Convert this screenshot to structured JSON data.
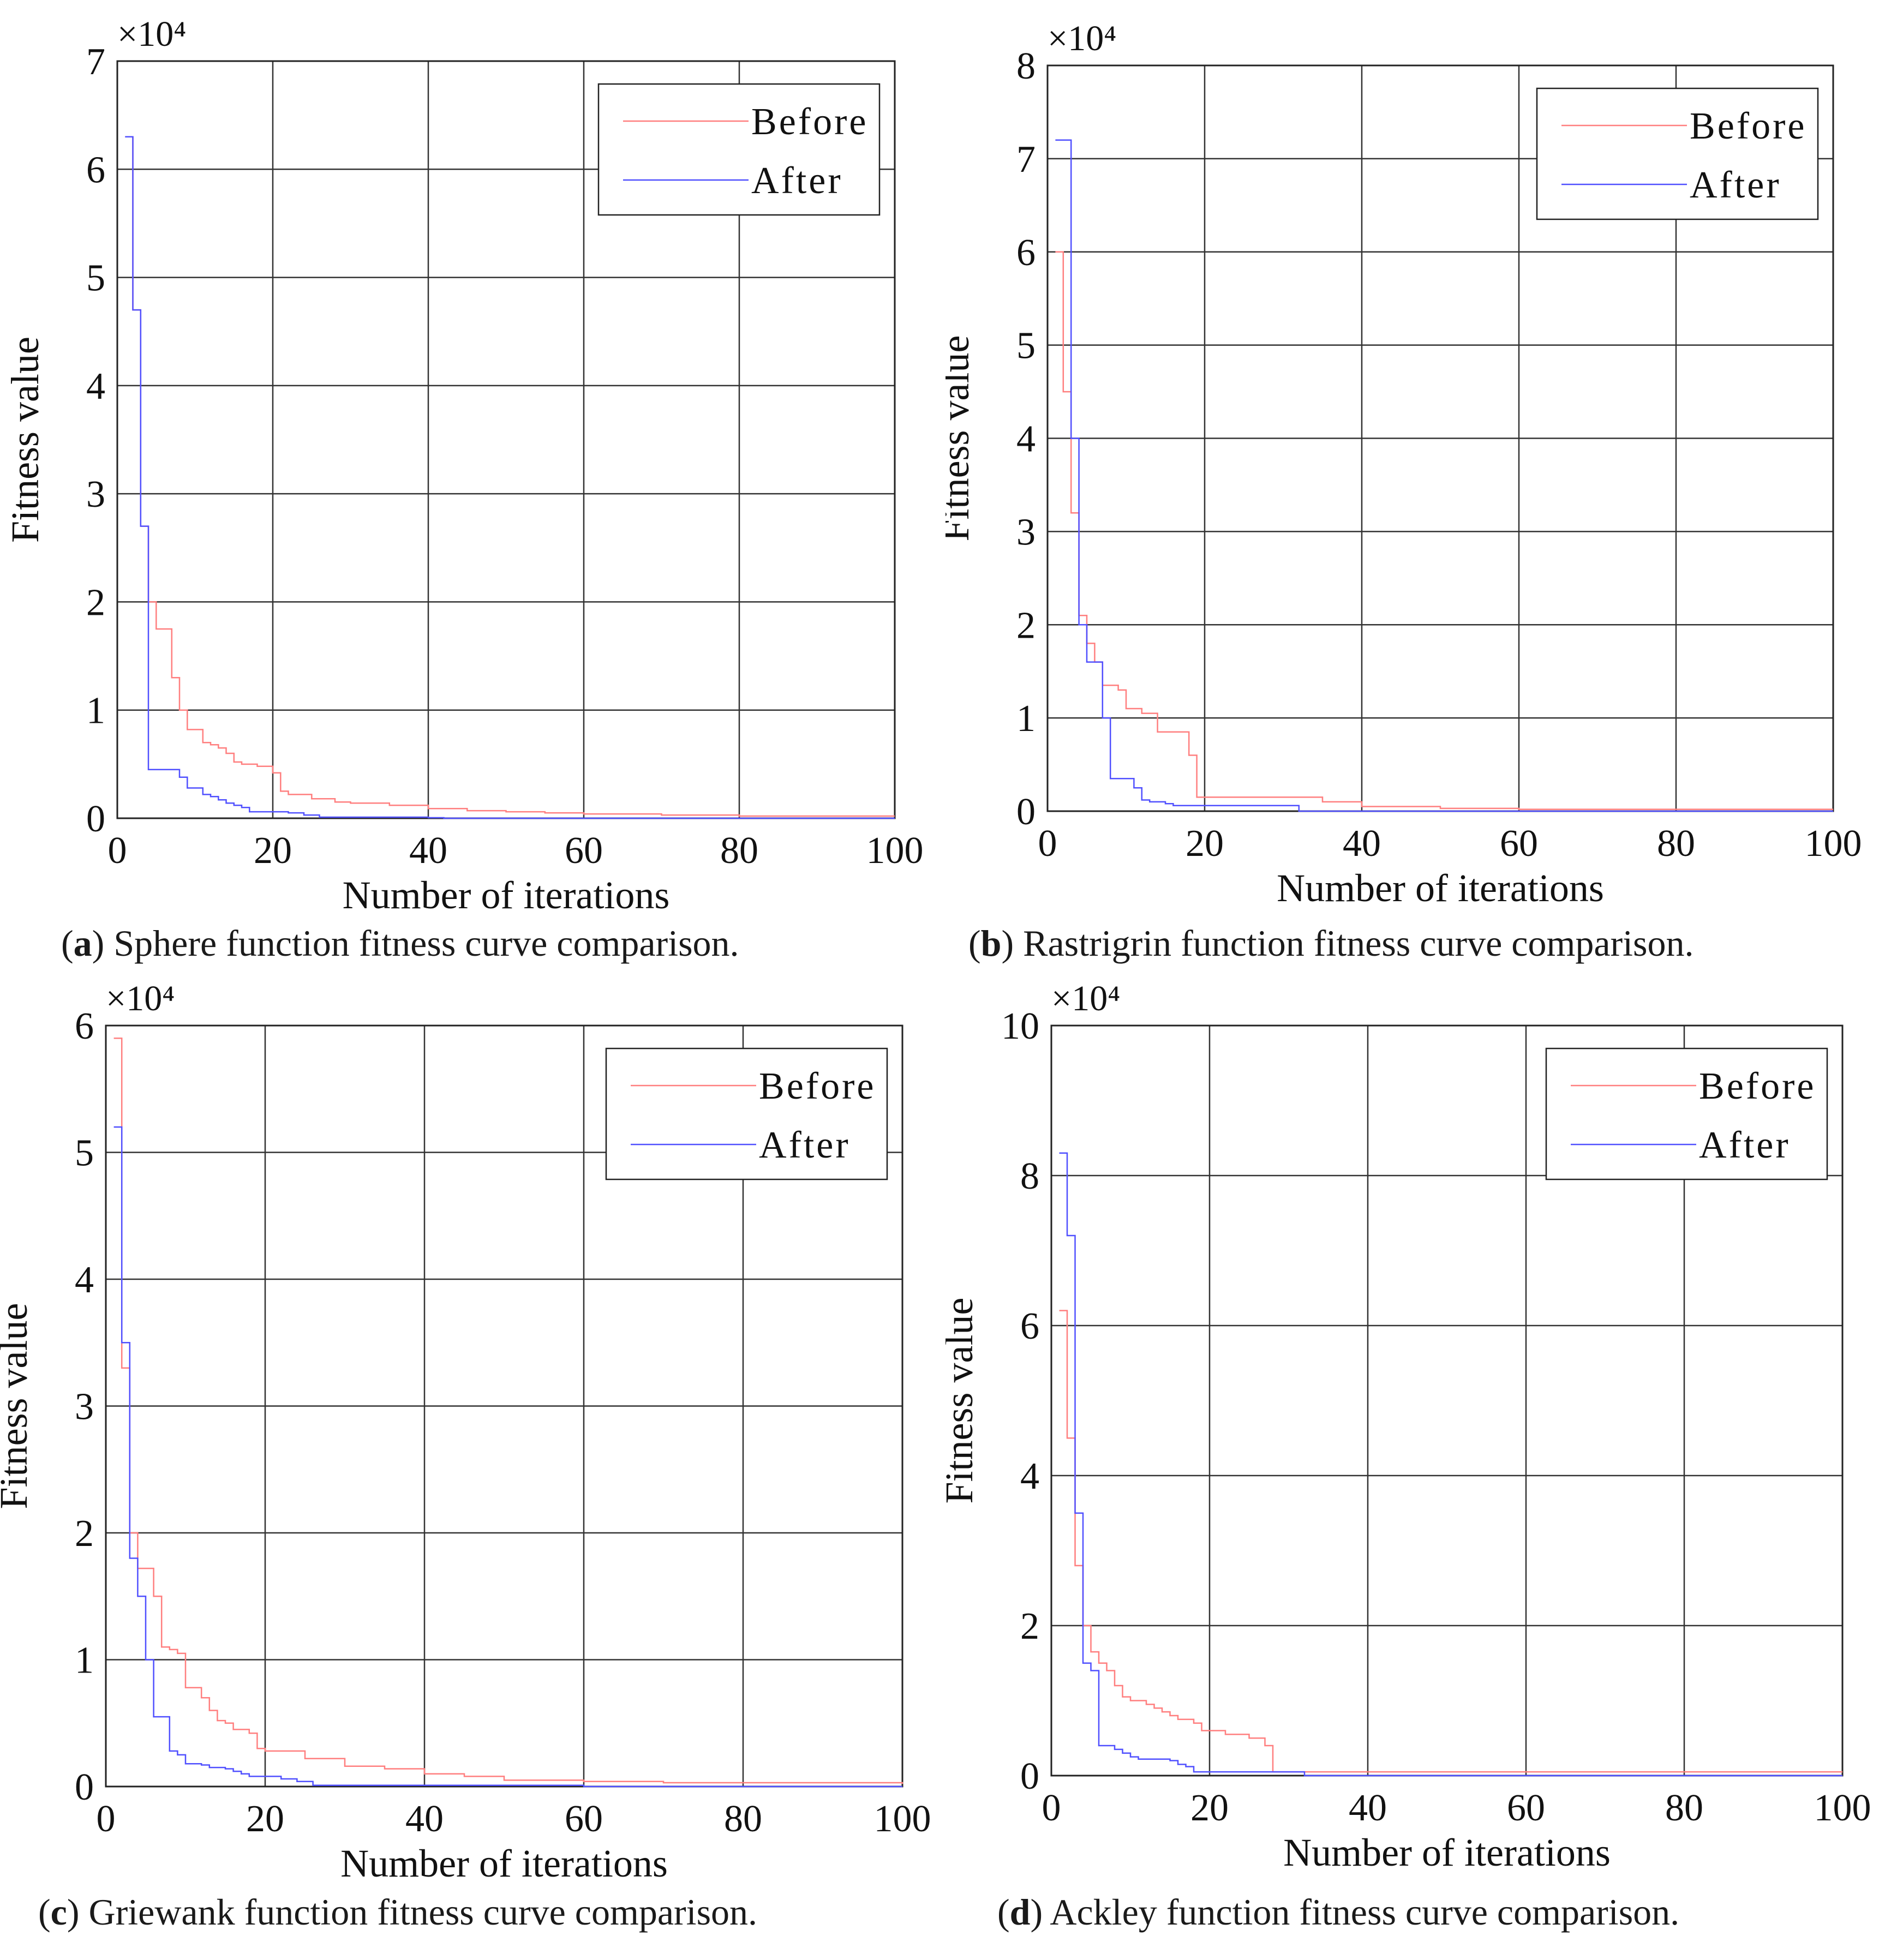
{
  "figure": {
    "panels": [
      {
        "label": "a",
        "caption": "Sphere function fitness curve comparison."
      },
      {
        "label": "b",
        "caption": "Rastrigrin function fitness curve comparison."
      },
      {
        "label": "c",
        "caption": "Griewank function fitness curve comparison."
      },
      {
        "label": "d",
        "caption": "Ackley function fitness curve comparison."
      }
    ]
  },
  "colors": {
    "before": "#ff7f7f",
    "after": "#5050ff",
    "grid": "#333333",
    "axis": "#222222"
  },
  "chart_data": [
    {
      "type": "line",
      "title": "",
      "xlabel": "Number of iterations",
      "ylabel": "Fitness value",
      "y_multiplier": "×10⁴",
      "xlim": [
        0,
        100
      ],
      "ylim": [
        0,
        7
      ],
      "xticks": [
        0,
        20,
        40,
        60,
        80,
        100
      ],
      "yticks": [
        0,
        1,
        2,
        3,
        4,
        5,
        6,
        7
      ],
      "grid": true,
      "legend_position": "top-right",
      "series": [
        {
          "name": "Before",
          "x": [
            1,
            2,
            3,
            4,
            5,
            6,
            7,
            8,
            9,
            10,
            11,
            12,
            13,
            14,
            15,
            16,
            18,
            20,
            21,
            22,
            25,
            28,
            30,
            35,
            40,
            45,
            50,
            55,
            60,
            70,
            80,
            100
          ],
          "y": [
            6.3,
            4.7,
            2.7,
            2.0,
            1.75,
            1.75,
            1.3,
            1.0,
            0.82,
            0.82,
            0.7,
            0.68,
            0.65,
            0.6,
            0.52,
            0.5,
            0.48,
            0.42,
            0.25,
            0.22,
            0.18,
            0.15,
            0.14,
            0.12,
            0.09,
            0.07,
            0.06,
            0.05,
            0.04,
            0.03,
            0.02,
            0.02
          ]
        },
        {
          "name": "After",
          "x": [
            1,
            2,
            3,
            4,
            5,
            6,
            7,
            8,
            9,
            10,
            11,
            12,
            13,
            14,
            15,
            16,
            17,
            18,
            20,
            22,
            24,
            26,
            30,
            40,
            42,
            50,
            60,
            100
          ],
          "y": [
            6.3,
            4.7,
            2.7,
            0.45,
            0.45,
            0.45,
            0.45,
            0.38,
            0.28,
            0.28,
            0.22,
            0.2,
            0.17,
            0.14,
            0.12,
            0.1,
            0.06,
            0.06,
            0.06,
            0.05,
            0.03,
            0.01,
            0.01,
            0.005,
            0.0,
            0.0,
            0.0,
            0.0
          ]
        }
      ]
    },
    {
      "type": "line",
      "title": "",
      "xlabel": "Number of iterations",
      "ylabel": "Fitness value",
      "y_multiplier": "×10⁴",
      "xlim": [
        0,
        100
      ],
      "ylim": [
        0,
        8
      ],
      "xticks": [
        0,
        20,
        40,
        60,
        80,
        100
      ],
      "yticks": [
        0,
        1,
        2,
        3,
        4,
        5,
        6,
        7,
        8
      ],
      "grid": true,
      "legend_position": "top-right",
      "series": [
        {
          "name": "Before",
          "x": [
            1,
            2,
            3,
            4,
            5,
            6,
            7,
            8,
            9,
            10,
            11,
            12,
            13,
            14,
            15,
            16,
            17,
            18,
            19,
            20,
            25,
            30,
            35,
            40,
            50,
            60,
            100
          ],
          "y": [
            6.0,
            4.5,
            3.2,
            2.1,
            1.8,
            1.6,
            1.35,
            1.35,
            1.3,
            1.1,
            1.1,
            1.05,
            1.05,
            0.85,
            0.85,
            0.85,
            0.85,
            0.6,
            0.15,
            0.15,
            0.15,
            0.15,
            0.1,
            0.05,
            0.03,
            0.02,
            0.02
          ]
        },
        {
          "name": "After",
          "x": [
            1,
            2,
            3,
            4,
            5,
            6,
            7,
            8,
            9,
            10,
            11,
            12,
            13,
            14,
            15,
            16,
            20,
            25,
            30,
            32,
            40,
            50,
            100
          ],
          "y": [
            7.2,
            7.2,
            4.0,
            2.0,
            1.6,
            1.6,
            1.0,
            0.35,
            0.35,
            0.35,
            0.25,
            0.12,
            0.1,
            0.1,
            0.08,
            0.06,
            0.06,
            0.06,
            0.06,
            0.0,
            0.0,
            0.0,
            0.0
          ]
        }
      ]
    },
    {
      "type": "line",
      "title": "",
      "xlabel": "Number of iterations",
      "ylabel": "Fitness value",
      "y_multiplier": "×10⁴",
      "xlim": [
        0,
        100
      ],
      "ylim": [
        0,
        6
      ],
      "xticks": [
        0,
        20,
        40,
        60,
        80,
        100
      ],
      "yticks": [
        0,
        1,
        2,
        3,
        4,
        5,
        6
      ],
      "grid": true,
      "legend_position": "top-right",
      "series": [
        {
          "name": "Before",
          "x": [
            1,
            2,
            3,
            4,
            5,
            6,
            7,
            8,
            9,
            10,
            11,
            12,
            13,
            14,
            15,
            16,
            17,
            18,
            19,
            20,
            25,
            30,
            35,
            40,
            45,
            50,
            60,
            70,
            100
          ],
          "y": [
            5.9,
            3.3,
            2.0,
            1.72,
            1.72,
            1.5,
            1.1,
            1.08,
            1.05,
            0.78,
            0.78,
            0.7,
            0.6,
            0.52,
            0.5,
            0.45,
            0.45,
            0.42,
            0.3,
            0.28,
            0.22,
            0.16,
            0.14,
            0.1,
            0.08,
            0.05,
            0.04,
            0.03,
            0.02
          ]
        },
        {
          "name": "After",
          "x": [
            1,
            2,
            3,
            4,
            5,
            6,
            7,
            8,
            9,
            10,
            11,
            12,
            13,
            14,
            15,
            16,
            17,
            18,
            20,
            22,
            24,
            26,
            30,
            40,
            60,
            100
          ],
          "y": [
            5.2,
            3.5,
            1.8,
            1.5,
            1.0,
            0.55,
            0.55,
            0.28,
            0.25,
            0.18,
            0.18,
            0.17,
            0.15,
            0.15,
            0.14,
            0.12,
            0.1,
            0.08,
            0.08,
            0.06,
            0.04,
            0.01,
            0.01,
            0.01,
            0.0,
            0.0
          ]
        }
      ]
    },
    {
      "type": "line",
      "title": "",
      "xlabel": "Number of iterations",
      "ylabel": "Fitness value",
      "y_multiplier": "×10⁴",
      "xlim": [
        0,
        100
      ],
      "ylim": [
        0,
        10
      ],
      "xticks": [
        0,
        20,
        40,
        60,
        80,
        100
      ],
      "yticks": [
        0,
        2,
        4,
        6,
        8,
        10
      ],
      "grid": true,
      "legend_position": "top-right",
      "series": [
        {
          "name": "Before",
          "x": [
            1,
            2,
            3,
            4,
            5,
            6,
            7,
            8,
            9,
            10,
            11,
            12,
            13,
            14,
            15,
            16,
            17,
            18,
            19,
            20,
            22,
            25,
            27,
            28,
            30,
            40,
            60,
            100
          ],
          "y": [
            6.2,
            4.5,
            2.8,
            2.0,
            1.65,
            1.5,
            1.4,
            1.2,
            1.05,
            1.0,
            1.0,
            0.95,
            0.9,
            0.85,
            0.8,
            0.75,
            0.75,
            0.7,
            0.6,
            0.6,
            0.55,
            0.5,
            0.4,
            0.05,
            0.05,
            0.05,
            0.05,
            0.05
          ]
        },
        {
          "name": "After",
          "x": [
            1,
            2,
            3,
            4,
            5,
            6,
            7,
            8,
            9,
            10,
            11,
            12,
            13,
            14,
            15,
            16,
            17,
            18,
            20,
            25,
            30,
            32,
            40,
            60,
            100
          ],
          "y": [
            8.3,
            7.2,
            3.5,
            1.5,
            1.4,
            0.4,
            0.4,
            0.35,
            0.3,
            0.25,
            0.22,
            0.22,
            0.22,
            0.22,
            0.2,
            0.15,
            0.12,
            0.05,
            0.05,
            0.05,
            0.05,
            0.0,
            0.0,
            0.0,
            0.0
          ]
        }
      ]
    }
  ]
}
